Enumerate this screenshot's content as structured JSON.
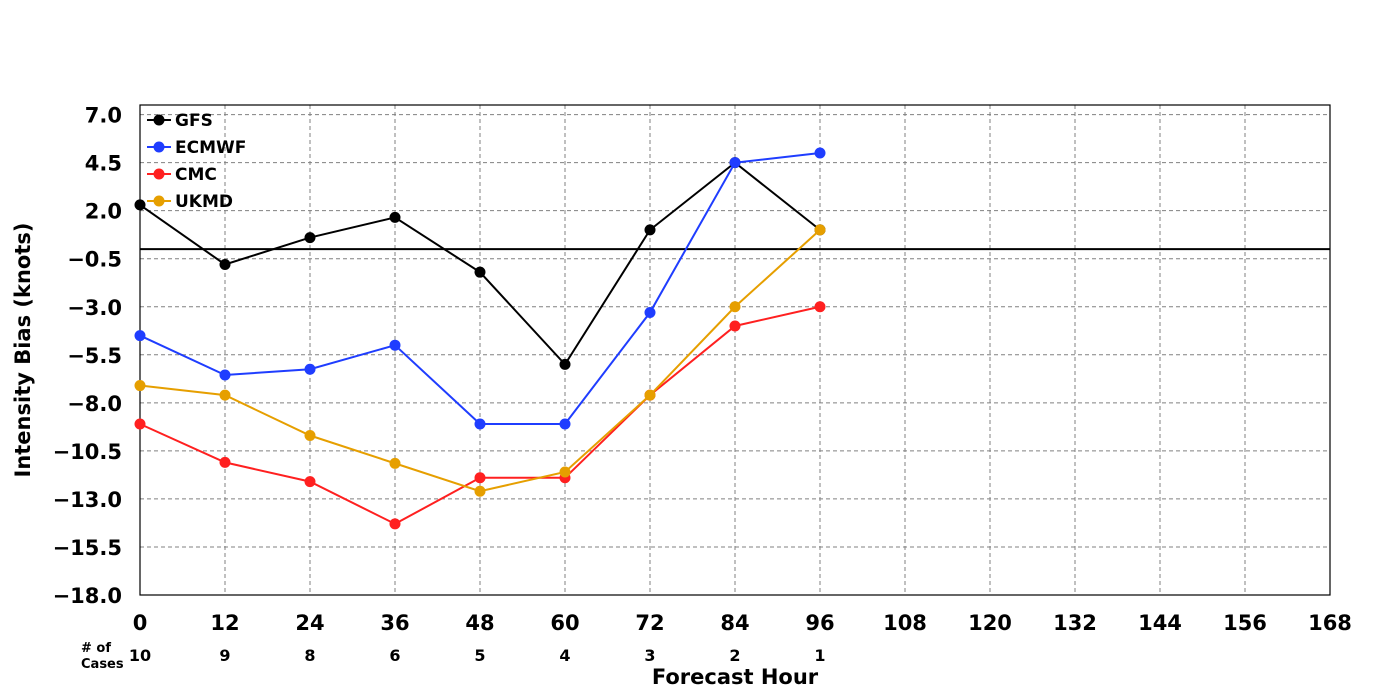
{
  "chart_data": {
    "type": "line",
    "title": "",
    "xlabel": "Forecast Hour",
    "ylabel": "Intensity Bias (knots)",
    "xlim": [
      0,
      168
    ],
    "ylim": [
      -18.0,
      7.5
    ],
    "x_ticks": [
      0,
      12,
      24,
      36,
      48,
      60,
      72,
      84,
      96,
      108,
      120,
      132,
      144,
      156,
      168
    ],
    "x_tick_labels": [
      "0",
      "12",
      "24",
      "36",
      "48",
      "60",
      "72",
      "84",
      "96",
      "108",
      "120",
      "132",
      "144",
      "156",
      "168"
    ],
    "y_ticks": [
      7.0,
      4.5,
      2.0,
      -0.5,
      -3.0,
      -5.5,
      -8.0,
      -10.5,
      -13.0,
      -15.5,
      -18.0
    ],
    "y_tick_labels": [
      "7.0",
      "4.5",
      "2.0",
      "−0.5",
      "−3.0",
      "−5.5",
      "−8.0",
      "−10.5",
      "−13.0",
      "−15.5",
      "−18.0"
    ],
    "zero_line": 0,
    "grid": true,
    "legend_position": "top-left",
    "cases_title": "# of\nCases",
    "cases": [
      {
        "x": 0,
        "label": "10"
      },
      {
        "x": 12,
        "label": "9"
      },
      {
        "x": 24,
        "label": "8"
      },
      {
        "x": 36,
        "label": "6"
      },
      {
        "x": 48,
        "label": "5"
      },
      {
        "x": 60,
        "label": "4"
      },
      {
        "x": 72,
        "label": "3"
      },
      {
        "x": 84,
        "label": "2"
      },
      {
        "x": 96,
        "label": "1"
      }
    ],
    "x": [
      0,
      12,
      24,
      36,
      48,
      60,
      72,
      84,
      96
    ],
    "series": [
      {
        "name": "GFS",
        "color": "#000000",
        "values": [
          2.3,
          -0.8,
          0.6,
          1.65,
          -1.2,
          -6.0,
          1.0,
          4.5,
          1.0
        ]
      },
      {
        "name": "ECMWF",
        "color": "#1f3dff",
        "values": [
          -4.5,
          -6.55,
          -6.25,
          -5.0,
          -9.1,
          -9.1,
          -3.3,
          4.5,
          5.0
        ]
      },
      {
        "name": "CMC",
        "color": "#ff2020",
        "values": [
          -9.1,
          -11.1,
          -12.1,
          -14.3,
          -11.9,
          -11.9,
          -7.6,
          -4.0,
          -3.0
        ]
      },
      {
        "name": "UKMD",
        "color": "#e69f00",
        "values": [
          -7.1,
          -7.6,
          -9.7,
          -11.15,
          -12.6,
          -11.6,
          -7.6,
          -3.0,
          1.0
        ]
      }
    ]
  }
}
